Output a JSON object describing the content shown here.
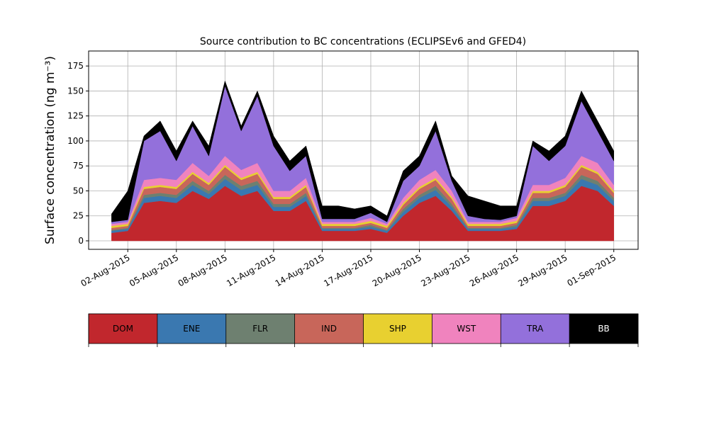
{
  "chart_data": {
    "type": "stacked_area",
    "title": "Source contribution to BC concentrations (ECLIPSEv6 and GFED4)",
    "ylabel": "Surface concentration (ng m⁻³)",
    "x": [
      "2015-08-01",
      "2015-08-02",
      "2015-08-03",
      "2015-08-04",
      "2015-08-05",
      "2015-08-06",
      "2015-08-07",
      "2015-08-08",
      "2015-08-09",
      "2015-08-10",
      "2015-08-11",
      "2015-08-12",
      "2015-08-13",
      "2015-08-14",
      "2015-08-15",
      "2015-08-16",
      "2015-08-17",
      "2015-08-18",
      "2015-08-19",
      "2015-08-20",
      "2015-08-21",
      "2015-08-22",
      "2015-08-23",
      "2015-08-24",
      "2015-08-25",
      "2015-08-26",
      "2015-08-27",
      "2015-08-28",
      "2015-08-29",
      "2015-08-30",
      "2015-08-31",
      "2015-09-01"
    ],
    "series": [
      {
        "name": "DOM",
        "color": "#c1272d",
        "values": [
          8,
          10,
          38,
          40,
          38,
          50,
          42,
          55,
          45,
          50,
          30,
          30,
          40,
          10,
          10,
          10,
          12,
          8,
          25,
          38,
          45,
          30,
          10,
          10,
          10,
          12,
          35,
          35,
          40,
          55,
          50,
          35
        ]
      },
      {
        "name": "ENE",
        "color": "#3a78b0",
        "values": [
          2,
          2,
          5,
          5,
          5,
          6,
          5,
          7,
          6,
          6,
          4,
          4,
          5,
          2,
          2,
          2,
          2,
          2,
          4,
          5,
          6,
          4,
          2,
          2,
          2,
          2,
          5,
          5,
          5,
          7,
          6,
          5
        ]
      },
      {
        "name": "FLR",
        "color": "#6e8070",
        "values": [
          1,
          1,
          3,
          3,
          3,
          4,
          3,
          4,
          4,
          4,
          3,
          3,
          3,
          1,
          1,
          1,
          2,
          1,
          3,
          3,
          4,
          3,
          1,
          1,
          1,
          2,
          3,
          3,
          3,
          4,
          4,
          3
        ]
      },
      {
        "name": "IND",
        "color": "#c8665a",
        "values": [
          2,
          2,
          6,
          6,
          6,
          7,
          6,
          8,
          6,
          7,
          5,
          5,
          6,
          2,
          2,
          2,
          2,
          2,
          4,
          6,
          6,
          5,
          2,
          2,
          2,
          2,
          5,
          5,
          6,
          8,
          7,
          5
        ]
      },
      {
        "name": "SHP",
        "color": "#e8d030",
        "values": [
          2,
          2,
          2,
          2,
          2,
          2,
          2,
          2,
          2,
          2,
          2,
          2,
          2,
          2,
          2,
          2,
          2,
          2,
          2,
          2,
          2,
          2,
          2,
          2,
          2,
          2,
          2,
          2,
          2,
          2,
          2,
          2
        ]
      },
      {
        "name": "WST",
        "color": "#f083be",
        "values": [
          2,
          2,
          7,
          7,
          7,
          9,
          7,
          9,
          8,
          9,
          6,
          6,
          7,
          2,
          2,
          2,
          3,
          2,
          5,
          7,
          8,
          6,
          2,
          2,
          2,
          3,
          6,
          6,
          7,
          9,
          9,
          6
        ]
      },
      {
        "name": "TRA",
        "color": "#9370db",
        "values": [
          2,
          2,
          39,
          47,
          19,
          37,
          20,
          70,
          39,
          67,
          45,
          20,
          22,
          3,
          3,
          3,
          5,
          2,
          17,
          14,
          39,
          10,
          6,
          3,
          2,
          2,
          39,
          24,
          32,
          55,
          32,
          24
        ]
      },
      {
        "name": "BB",
        "color": "#000000",
        "values": [
          8,
          29,
          5,
          10,
          10,
          5,
          10,
          5,
          5,
          5,
          10,
          10,
          10,
          13,
          13,
          10,
          7,
          6,
          10,
          10,
          10,
          5,
          20,
          18,
          14,
          10,
          5,
          10,
          10,
          10,
          10,
          10
        ]
      }
    ],
    "xlim": [
      "2015-07-30T14:00",
      "2015-09-02T12:00"
    ],
    "xticks": [
      {
        "value": "2015-08-02",
        "label": "02-Aug-2015"
      },
      {
        "value": "2015-08-05",
        "label": "05-Aug-2015"
      },
      {
        "value": "2015-08-08",
        "label": "08-Aug-2015"
      },
      {
        "value": "2015-08-11",
        "label": "11-Aug-2015"
      },
      {
        "value": "2015-08-14",
        "label": "14-Aug-2015"
      },
      {
        "value": "2015-08-17",
        "label": "17-Aug-2015"
      },
      {
        "value": "2015-08-20",
        "label": "20-Aug-2015"
      },
      {
        "value": "2015-08-23",
        "label": "23-Aug-2015"
      },
      {
        "value": "2015-08-26",
        "label": "26-Aug-2015"
      },
      {
        "value": "2015-08-29",
        "label": "29-Aug-2015"
      },
      {
        "value": "2015-09-01",
        "label": "01-Sep-2015"
      }
    ],
    "ylim": [
      -8.5,
      190
    ],
    "yticks": [
      0,
      25,
      50,
      75,
      100,
      125,
      150,
      175
    ],
    "grid": true
  }
}
